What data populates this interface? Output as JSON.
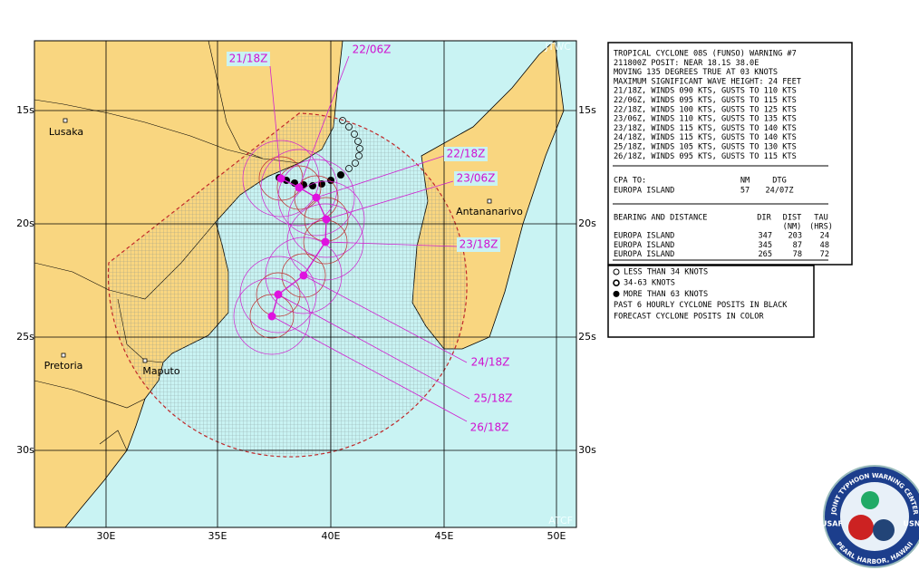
{
  "map": {
    "corner_labels": [
      "JTWC",
      "ATCF"
    ],
    "lat_labels": [
      "15s",
      "20s",
      "25s",
      "30s"
    ],
    "lon_labels": [
      "30E",
      "35E",
      "40E",
      "45E",
      "50E"
    ],
    "cities": [
      "Lusaka",
      "Antananarivo",
      "Pretoria",
      "Maputo"
    ],
    "forecast_labels": [
      "21/18Z",
      "22/06Z",
      "22/18Z",
      "23/06Z",
      "23/18Z",
      "24/18Z",
      "25/18Z",
      "26/18Z"
    ]
  },
  "warning": {
    "lines": [
      "TROPICAL CYCLONE 08S (FUNSO) WARNING #7",
      "211800Z POSIT: NEAR 18.1S 38.0E",
      "MOVING 135 DEGREES TRUE AT 03 KNOTS",
      "MAXIMUM SIGNIFICANT WAVE HEIGHT: 24 FEET",
      "21/18Z, WINDS 090 KTS, GUSTS TO 110 KTS",
      "22/06Z, WINDS 095 KTS, GUSTS TO 115 KTS",
      "22/18Z, WINDS 100 KTS, GUSTS TO 125 KTS",
      "23/06Z, WINDS 110 KTS, GUSTS TO 135 KTS",
      "23/18Z, WINDS 115 KTS, GUSTS TO 140 KTS",
      "24/18Z, WINDS 115 KTS, GUSTS TO 140 KTS",
      "25/18Z, WINDS 105 KTS, GUSTS TO 130 KTS",
      "26/18Z, WINDS 095 KTS, GUSTS TO 115 KTS"
    ],
    "cpa": {
      "header": [
        "CPA TO:",
        "NM",
        "DTG"
      ],
      "row": [
        "EUROPA ISLAND",
        "57",
        "24/07Z"
      ]
    },
    "bearing": {
      "header": [
        "BEARING AND DISTANCE",
        "DIR",
        "DIST",
        "TAU"
      ],
      "subheader": [
        "(NM)",
        "(HRS)"
      ],
      "rows": [
        [
          "EUROPA ISLAND",
          "347",
          "203",
          "24"
        ],
        [
          "EUROPA ISLAND",
          "345",
          "87",
          "48"
        ],
        [
          "EUROPA ISLAND",
          "265",
          "78",
          "72"
        ]
      ]
    }
  },
  "legend": [
    "LESS THAN 34 KNOTS",
    "34-63 KNOTS",
    "MORE THAN 63 KNOTS",
    "PAST 6 HOURLY CYCLONE POSITS IN BLACK",
    "FORECAST CYCLONE POSITS IN COLOR"
  ],
  "logo": {
    "ring_top": "JOINT TYPHOON WARNING CENTER",
    "ring_bottom": "PEARL HARBOR, HAWAII",
    "left": "USAF",
    "right": "USN"
  }
}
